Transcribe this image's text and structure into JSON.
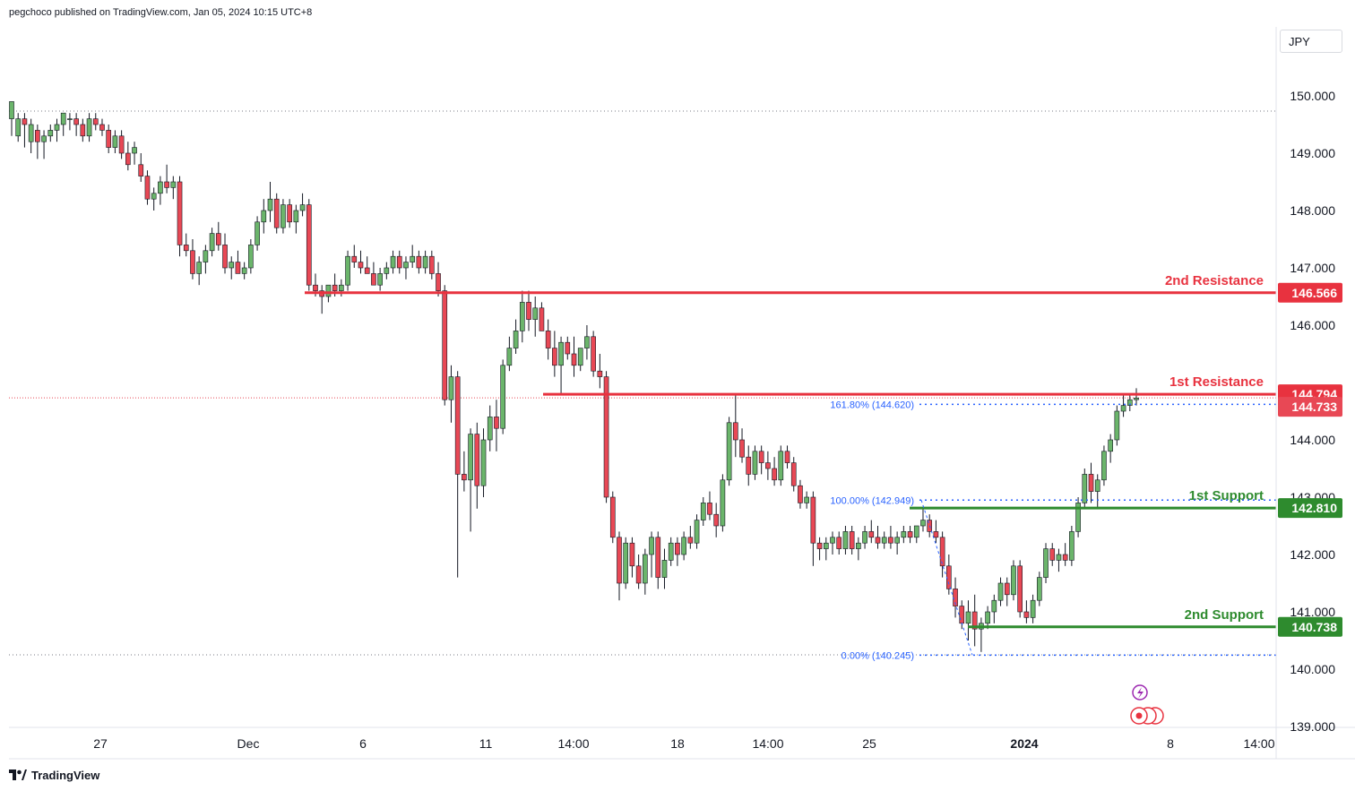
{
  "header": {
    "publisher_text": "pegchoco published on TradingView.com, Jan 05, 2024 10:15 UTC+8"
  },
  "currency_label": "JPY",
  "footer": {
    "brand": "TradingView"
  },
  "colors": {
    "up": "#26a69a",
    "up_body": "#6bb56b",
    "down": "#e84855",
    "resistance": "#e8323f",
    "support": "#2e8b2e",
    "fib": "#2962ff"
  },
  "chart_data": {
    "type": "candlestick",
    "symbol_currency": "JPY",
    "ylim": [
      139.0,
      150.5
    ],
    "y_ticks": [
      "150.000",
      "149.000",
      "148.000",
      "147.000",
      "146.000",
      "144.000",
      "143.000",
      "142.000",
      "141.000",
      "140.000",
      "139.000"
    ],
    "x_ticks": [
      "27",
      "Dec",
      "6",
      "11",
      "14:00",
      "18",
      "14:00",
      "25",
      "2024",
      "8",
      "14:00"
    ],
    "levels": [
      {
        "name": "2nd Resistance",
        "value": 146.566,
        "tag": "146.566",
        "kind": "resistance"
      },
      {
        "name": "1st Resistance",
        "value": 144.794,
        "tag": "144.794",
        "kind": "resistance"
      },
      {
        "name": "1st Support",
        "value": 142.81,
        "tag": "142.810",
        "kind": "support"
      },
      {
        "name": "2nd Support",
        "value": 140.738,
        "tag": "140.738",
        "kind": "support"
      }
    ],
    "current_price": {
      "value": 144.733,
      "tag": "144.733"
    },
    "fibonacci": [
      {
        "label": "161.80% (144.620)",
        "value": 144.62
      },
      {
        "label": "100.00% (142.949)",
        "value": 142.949
      },
      {
        "label": "0.00% (140.245)",
        "value": 140.245
      }
    ],
    "candles": [
      [
        149.6,
        149.8,
        149.3,
        149.9
      ],
      [
        149.3,
        149.7,
        149.2,
        149.6
      ],
      [
        149.6,
        149.7,
        149.1,
        149.5
      ],
      [
        149.2,
        149.6,
        149.0,
        149.5
      ],
      [
        149.4,
        149.5,
        148.9,
        149.2
      ],
      [
        149.2,
        149.4,
        148.9,
        149.3
      ],
      [
        149.3,
        149.5,
        149.2,
        149.4
      ],
      [
        149.4,
        149.6,
        149.2,
        149.5
      ],
      [
        149.5,
        149.7,
        149.3,
        149.7
      ],
      [
        149.6,
        149.7,
        149.4,
        149.6
      ],
      [
        149.6,
        149.7,
        149.3,
        149.5
      ],
      [
        149.5,
        149.6,
        149.2,
        149.3
      ],
      [
        149.3,
        149.7,
        149.2,
        149.6
      ],
      [
        149.6,
        149.7,
        149.4,
        149.5
      ],
      [
        149.5,
        149.6,
        149.3,
        149.4
      ],
      [
        149.4,
        149.5,
        149.0,
        149.1
      ],
      [
        149.1,
        149.4,
        149.0,
        149.3
      ],
      [
        149.3,
        149.4,
        148.9,
        149.0
      ],
      [
        149.0,
        149.2,
        148.7,
        148.8
      ],
      [
        149.0,
        149.2,
        148.8,
        149.1
      ],
      [
        148.8,
        149.0,
        148.5,
        148.6
      ],
      [
        148.6,
        148.7,
        148.1,
        148.2
      ],
      [
        148.2,
        148.4,
        148.0,
        148.3
      ],
      [
        148.3,
        148.6,
        148.1,
        148.5
      ],
      [
        148.5,
        148.8,
        148.3,
        148.4
      ],
      [
        148.4,
        148.6,
        148.2,
        148.5
      ],
      [
        148.5,
        148.6,
        147.2,
        147.4
      ],
      [
        147.4,
        147.6,
        147.2,
        147.3
      ],
      [
        147.3,
        147.5,
        146.8,
        146.9
      ],
      [
        146.9,
        147.2,
        146.7,
        147.1
      ],
      [
        147.1,
        147.4,
        146.9,
        147.3
      ],
      [
        147.3,
        147.7,
        147.2,
        147.6
      ],
      [
        147.6,
        147.8,
        147.3,
        147.4
      ],
      [
        147.4,
        147.6,
        146.9,
        147.0
      ],
      [
        147.0,
        147.2,
        146.8,
        147.1
      ],
      [
        147.1,
        147.3,
        146.9,
        146.9
      ],
      [
        146.9,
        147.1,
        146.8,
        147.0
      ],
      [
        147.0,
        147.5,
        146.9,
        147.4
      ],
      [
        147.4,
        147.9,
        147.3,
        147.8
      ],
      [
        147.8,
        148.2,
        147.6,
        148.0
      ],
      [
        148.0,
        148.5,
        147.8,
        148.2
      ],
      [
        148.2,
        148.3,
        147.6,
        147.7
      ],
      [
        147.7,
        148.2,
        147.6,
        148.1
      ],
      [
        148.1,
        148.2,
        147.7,
        147.8
      ],
      [
        147.8,
        148.1,
        147.6,
        148.0
      ],
      [
        148.0,
        148.3,
        147.9,
        148.1
      ],
      [
        148.1,
        148.2,
        146.6,
        146.7
      ],
      [
        146.7,
        146.9,
        146.5,
        146.6
      ],
      [
        146.6,
        146.7,
        146.2,
        146.5
      ],
      [
        146.5,
        146.7,
        146.4,
        146.7
      ],
      [
        146.7,
        146.9,
        146.5,
        146.6
      ],
      [
        146.6,
        146.8,
        146.5,
        146.7
      ],
      [
        146.7,
        147.3,
        146.6,
        147.2
      ],
      [
        147.2,
        147.4,
        147.0,
        147.1
      ],
      [
        147.1,
        147.3,
        146.9,
        147.0
      ],
      [
        147.0,
        147.2,
        146.9,
        146.9
      ],
      [
        146.9,
        147.1,
        146.7,
        146.7
      ],
      [
        146.7,
        147.0,
        146.6,
        146.9
      ],
      [
        146.9,
        147.1,
        146.8,
        147.0
      ],
      [
        147.0,
        147.3,
        146.9,
        147.2
      ],
      [
        147.2,
        147.3,
        146.9,
        147.0
      ],
      [
        147.0,
        147.2,
        146.8,
        147.1
      ],
      [
        147.1,
        147.4,
        147.0,
        147.2
      ],
      [
        147.2,
        147.3,
        146.9,
        147.0
      ],
      [
        147.0,
        147.3,
        146.9,
        147.2
      ],
      [
        147.2,
        147.3,
        146.8,
        146.9
      ],
      [
        146.9,
        147.1,
        146.5,
        146.6
      ],
      [
        146.6,
        146.7,
        144.6,
        144.7
      ],
      [
        144.7,
        145.3,
        144.3,
        145.1
      ],
      [
        145.1,
        145.2,
        141.6,
        143.4
      ],
      [
        143.4,
        143.8,
        143.1,
        143.3
      ],
      [
        143.3,
        144.2,
        142.4,
        144.1
      ],
      [
        144.1,
        144.3,
        142.8,
        143.2
      ],
      [
        143.2,
        144.2,
        143.0,
        144.0
      ],
      [
        144.0,
        144.6,
        143.8,
        144.4
      ],
      [
        144.4,
        144.7,
        143.8,
        144.2
      ],
      [
        144.2,
        145.4,
        144.1,
        145.3
      ],
      [
        145.3,
        145.8,
        145.2,
        145.6
      ],
      [
        145.6,
        146.1,
        145.5,
        145.9
      ],
      [
        145.9,
        146.6,
        145.7,
        146.4
      ],
      [
        146.4,
        146.6,
        145.9,
        146.1
      ],
      [
        146.1,
        146.5,
        145.8,
        146.3
      ],
      [
        146.3,
        146.4,
        145.9,
        145.9
      ],
      [
        145.9,
        146.1,
        145.4,
        145.6
      ],
      [
        145.6,
        145.9,
        145.1,
        145.3
      ],
      [
        145.3,
        145.8,
        144.8,
        145.7
      ],
      [
        145.7,
        145.8,
        145.4,
        145.5
      ],
      [
        145.5,
        145.8,
        145.1,
        145.3
      ],
      [
        145.3,
        145.6,
        145.2,
        145.6
      ],
      [
        145.6,
        146.0,
        145.4,
        145.8
      ],
      [
        145.8,
        145.9,
        145.1,
        145.2
      ],
      [
        145.2,
        145.5,
        144.9,
        145.1
      ],
      [
        145.1,
        145.2,
        142.9,
        143.0
      ],
      [
        143.0,
        143.1,
        142.2,
        142.3
      ],
      [
        142.3,
        142.4,
        141.2,
        141.5
      ],
      [
        141.5,
        142.3,
        141.4,
        142.2
      ],
      [
        142.2,
        142.3,
        141.6,
        141.8
      ],
      [
        141.8,
        142.0,
        141.4,
        141.5
      ],
      [
        141.5,
        142.1,
        141.3,
        142.0
      ],
      [
        142.0,
        142.4,
        141.6,
        142.3
      ],
      [
        142.3,
        142.4,
        141.4,
        141.6
      ],
      [
        141.6,
        142.1,
        141.4,
        141.9
      ],
      [
        141.9,
        142.3,
        141.8,
        142.2
      ],
      [
        142.2,
        142.3,
        141.8,
        142.0
      ],
      [
        142.0,
        142.4,
        141.9,
        142.3
      ],
      [
        142.3,
        142.5,
        142.1,
        142.2
      ],
      [
        142.2,
        142.7,
        142.1,
        142.6
      ],
      [
        142.6,
        143.0,
        142.5,
        142.9
      ],
      [
        142.9,
        143.1,
        142.6,
        142.7
      ],
      [
        142.7,
        142.9,
        142.3,
        142.5
      ],
      [
        142.5,
        143.4,
        142.4,
        143.3
      ],
      [
        143.3,
        144.4,
        143.2,
        144.3
      ],
      [
        144.3,
        144.8,
        143.7,
        144.0
      ],
      [
        144.0,
        144.2,
        143.6,
        143.7
      ],
      [
        143.7,
        143.9,
        143.2,
        143.4
      ],
      [
        143.4,
        143.9,
        143.3,
        143.8
      ],
      [
        143.8,
        143.9,
        143.4,
        143.6
      ],
      [
        143.6,
        143.8,
        143.3,
        143.5
      ],
      [
        143.5,
        143.7,
        143.2,
        143.3
      ],
      [
        143.3,
        143.9,
        143.2,
        143.8
      ],
      [
        143.8,
        143.9,
        143.5,
        143.6
      ],
      [
        143.6,
        143.7,
        143.1,
        143.2
      ],
      [
        143.2,
        143.3,
        142.8,
        142.9
      ],
      [
        142.9,
        143.1,
        142.8,
        143.0
      ],
      [
        143.0,
        143.1,
        141.8,
        142.2
      ],
      [
        142.2,
        142.3,
        141.9,
        142.1
      ],
      [
        142.1,
        142.3,
        141.9,
        142.2
      ],
      [
        142.2,
        142.4,
        142.0,
        142.3
      ],
      [
        142.3,
        142.4,
        142.0,
        142.1
      ],
      [
        142.1,
        142.5,
        142.0,
        142.4
      ],
      [
        142.4,
        142.5,
        142.0,
        142.1
      ],
      [
        142.1,
        142.3,
        141.9,
        142.2
      ],
      [
        142.2,
        142.5,
        142.1,
        142.4
      ],
      [
        142.4,
        142.6,
        142.2,
        142.3
      ],
      [
        142.3,
        142.5,
        142.1,
        142.2
      ],
      [
        142.2,
        142.4,
        142.1,
        142.3
      ],
      [
        142.3,
        142.5,
        142.1,
        142.2
      ],
      [
        142.2,
        142.4,
        142.0,
        142.3
      ],
      [
        142.3,
        142.5,
        142.2,
        142.4
      ],
      [
        142.4,
        142.5,
        142.2,
        142.3
      ],
      [
        142.3,
        142.5,
        142.2,
        142.5
      ],
      [
        142.5,
        142.8,
        142.4,
        142.6
      ],
      [
        142.6,
        142.7,
        142.3,
        142.4
      ],
      [
        142.4,
        142.6,
        142.2,
        142.3
      ],
      [
        142.3,
        142.4,
        141.6,
        141.8
      ],
      [
        141.8,
        142.0,
        141.3,
        141.4
      ],
      [
        141.4,
        141.6,
        140.9,
        141.1
      ],
      [
        141.1,
        141.2,
        140.7,
        140.8
      ],
      [
        140.8,
        141.2,
        140.5,
        141.0
      ],
      [
        141.0,
        141.3,
        140.4,
        140.7
      ],
      [
        140.7,
        140.9,
        140.3,
        140.8
      ],
      [
        140.8,
        141.1,
        140.7,
        141.0
      ],
      [
        141.0,
        141.3,
        140.8,
        141.2
      ],
      [
        141.2,
        141.6,
        141.1,
        141.5
      ],
      [
        141.5,
        141.6,
        141.1,
        141.3
      ],
      [
        141.3,
        141.9,
        141.2,
        141.8
      ],
      [
        141.8,
        141.9,
        140.9,
        141.0
      ],
      [
        141.0,
        141.2,
        140.8,
        140.9
      ],
      [
        140.9,
        141.3,
        140.8,
        141.2
      ],
      [
        141.2,
        141.7,
        141.1,
        141.6
      ],
      [
        141.6,
        142.2,
        141.5,
        142.1
      ],
      [
        142.1,
        142.2,
        141.8,
        141.9
      ],
      [
        141.9,
        142.1,
        141.7,
        142.0
      ],
      [
        142.0,
        142.2,
        141.8,
        141.9
      ],
      [
        141.9,
        142.5,
        141.8,
        142.4
      ],
      [
        142.4,
        143.0,
        142.3,
        142.9
      ],
      [
        142.9,
        143.5,
        142.8,
        143.4
      ],
      [
        143.4,
        143.6,
        142.9,
        143.1
      ],
      [
        143.1,
        143.4,
        142.8,
        143.3
      ],
      [
        143.3,
        143.9,
        143.2,
        143.8
      ],
      [
        143.8,
        144.1,
        143.6,
        144.0
      ],
      [
        144.0,
        144.6,
        143.9,
        144.5
      ],
      [
        144.5,
        144.8,
        144.4,
        144.6
      ],
      [
        144.6,
        144.8,
        144.5,
        144.7
      ],
      [
        144.7,
        144.9,
        144.6,
        144.73
      ]
    ]
  }
}
